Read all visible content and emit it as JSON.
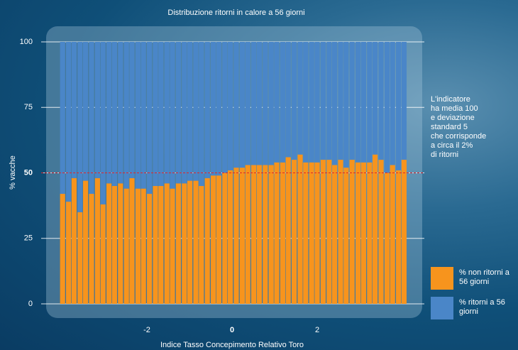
{
  "chart_data": {
    "type": "stacked_bar",
    "title": "Distribuzione ritorni in calore a 56 giorni",
    "x_label": "Indice Tasso Concepimento Relativo Toro",
    "y_label": "% vacche",
    "x": [
      -3.98,
      -3.84,
      -3.71,
      -3.57,
      -3.44,
      -3.3,
      -3.16,
      -3.03,
      -2.89,
      -2.76,
      -2.62,
      -2.48,
      -2.35,
      -2.21,
      -2.08,
      -1.94,
      -1.8,
      -1.67,
      -1.53,
      -1.4,
      -1.26,
      -1.12,
      -0.99,
      -0.85,
      -0.72,
      -0.58,
      -0.44,
      -0.31,
      -0.17,
      -0.04,
      0.1,
      0.24,
      0.37,
      0.51,
      0.64,
      0.78,
      0.92,
      1.05,
      1.19,
      1.32,
      1.46,
      1.6,
      1.73,
      1.87,
      2.0,
      2.14,
      2.28,
      2.41,
      2.55,
      2.68,
      2.82,
      2.96,
      3.09,
      3.23,
      3.36,
      3.5,
      3.64,
      3.77,
      3.91,
      4.04
    ],
    "series": [
      {
        "name": "% non ritorni a 56 giorni",
        "color": "#f7941d",
        "values": [
          42,
          39,
          48,
          35,
          47,
          42,
          48,
          38,
          46,
          45,
          46,
          44,
          48,
          44,
          44,
          42,
          45,
          45,
          46,
          44,
          46,
          46,
          47,
          47,
          45,
          48,
          49,
          49,
          50,
          51,
          52,
          52,
          53,
          53,
          53,
          53,
          53,
          54,
          54,
          56,
          55,
          57,
          54,
          54,
          54,
          55,
          55,
          53,
          55,
          52,
          55,
          54,
          54,
          54,
          57,
          55,
          50,
          53,
          51,
          55
        ]
      },
      {
        "name": "% ritorni a 56 giorni",
        "color": "#4a86c8",
        "values": [
          58,
          61,
          52,
          65,
          53,
          58,
          52,
          62,
          54,
          55,
          54,
          56,
          52,
          56,
          56,
          58,
          55,
          55,
          54,
          56,
          54,
          54,
          53,
          53,
          55,
          52,
          51,
          51,
          50,
          49,
          48,
          48,
          47,
          47,
          47,
          47,
          47,
          46,
          46,
          44,
          45,
          43,
          46,
          46,
          46,
          45,
          45,
          47,
          45,
          48,
          45,
          46,
          46,
          46,
          43,
          45,
          50,
          47,
          49,
          45
        ]
      }
    ],
    "xlim": [
      -4.4,
      4.5
    ],
    "xticks": [
      -2,
      0,
      2
    ],
    "ylim": [
      0,
      100
    ],
    "yticks": [
      0,
      25,
      50,
      75,
      100
    ],
    "reference_line": 50,
    "reference_color": "#e0262b",
    "annotation": [
      "L'indicatore",
      "ha media 100",
      "e deviazione",
      "standard 5",
      "che corrisponde",
      "a circa il 2%",
      "di ritorni"
    ],
    "grid": true
  }
}
